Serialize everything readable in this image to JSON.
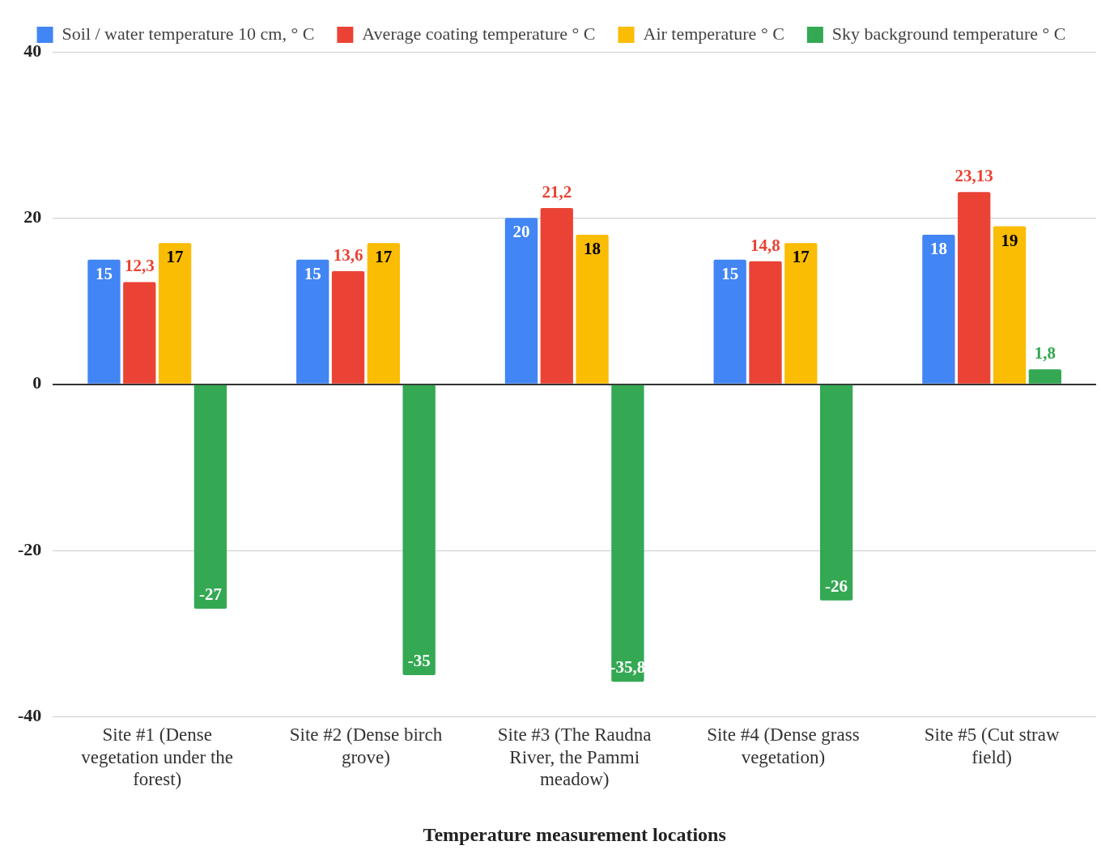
{
  "chart_data": {
    "type": "bar",
    "xlabel": "Temperature measurement locations",
    "categories": [
      "Site #1 (Dense vegetation under the forest)",
      "Site #2 (Dense birch grove)",
      "Site #3 (The Raudna River, the Pammi meadow)",
      "Site #4 (Dense grass vegetation)",
      "Site #5 (Cut straw field)"
    ],
    "series": [
      {
        "name": "Soil / water temperature 10 cm, ° C",
        "color": "#4285f4",
        "values": [
          15,
          15,
          20,
          15,
          18
        ],
        "value_labels": [
          "15",
          "15",
          "20",
          "15",
          "18"
        ]
      },
      {
        "name": "Average coating temperature ° C",
        "color": "#ea4335",
        "values": [
          12.3,
          13.6,
          21.2,
          14.8,
          23.13
        ],
        "value_labels": [
          "12,3",
          "13,6",
          "21,2",
          "14,8",
          "23,13"
        ]
      },
      {
        "name": "Air temperature ° C",
        "color": "#fbbc04",
        "values": [
          17,
          17,
          18,
          17,
          19
        ],
        "value_labels": [
          "17",
          "17",
          "18",
          "17",
          "19"
        ]
      },
      {
        "name": "Sky background temperature ° C",
        "color": "#34a853",
        "values": [
          -27,
          -35,
          -35.8,
          -26,
          1.8
        ],
        "value_labels": [
          "-27",
          "-35",
          "-35,8",
          "-26",
          "1,8"
        ]
      }
    ],
    "ylim": [
      -40,
      40
    ],
    "yticks": [
      -40,
      -20,
      0,
      20,
      40
    ],
    "grid": "y",
    "legend": "top"
  }
}
